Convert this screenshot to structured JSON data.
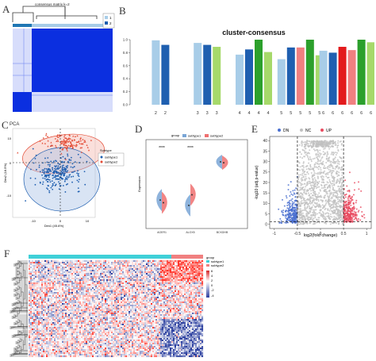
{
  "panels": {
    "a": {
      "label": "A",
      "title": "consensus matrix k=2",
      "legend": [
        "1",
        "2"
      ]
    },
    "b": {
      "label": "B"
    },
    "c": {
      "label": "C",
      "legend_title": "Subtype",
      "legend": [
        "subtype1",
        "subtype2"
      ]
    },
    "d": {
      "label": "D",
      "legend_title": "group",
      "legend": [
        "subtype1",
        "subtype2"
      ],
      "signif": [
        "****",
        "****"
      ]
    },
    "e": {
      "label": "E",
      "legend": [
        "DN",
        "NC",
        "UP"
      ]
    },
    "f": {
      "label": "F",
      "legend_title": "group",
      "legend": [
        "subtype1",
        "subtype2"
      ],
      "scale_ticks": [
        "6",
        "4",
        "2",
        "0",
        "-2",
        "-4"
      ]
    }
  },
  "colors": {
    "blue_dark": "#1f5fb0",
    "blue_light": "#a8cde8",
    "green_dark": "#2ca02c",
    "green_light": "#a6d96a",
    "salmon": "#f08080",
    "red": "#e31a1c",
    "consensus_blue": "#0b2fe0",
    "cyan": "#3fd0d8"
  },
  "chart_data": [
    {
      "panel": "B",
      "type": "bar",
      "title": "cluster-consensus",
      "ylim": [
        0,
        1.0
      ],
      "yticks": [
        "0.0",
        "0.2",
        "0.4",
        "0.6",
        "0.8",
        "1.0"
      ],
      "groups": [
        {
          "k": "2",
          "labels": [
            "2",
            "2"
          ],
          "values": [
            0.99,
            0.92
          ],
          "colors": [
            "#a8cde8",
            "#1f5fb0"
          ]
        },
        {
          "k": "3",
          "labels": [
            "3",
            "3",
            "3"
          ],
          "values": [
            0.95,
            0.92,
            0.89
          ],
          "colors": [
            "#a8cde8",
            "#1f5fb0",
            "#a6d96a"
          ]
        },
        {
          "k": "4",
          "labels": [
            "4",
            "4",
            "4",
            "4"
          ],
          "values": [
            0.77,
            0.85,
            1.0,
            0.81
          ],
          "colors": [
            "#a8cde8",
            "#1f5fb0",
            "#2ca02c",
            "#a6d96a"
          ]
        },
        {
          "k": "5",
          "labels": [
            "5",
            "5",
            "5",
            "5",
            "5"
          ],
          "values": [
            0.7,
            0.88,
            0.88,
            1.0,
            0.76
          ],
          "colors": [
            "#a8cde8",
            "#1f5fb0",
            "#f08080",
            "#2ca02c",
            "#a6d96a"
          ]
        },
        {
          "k": "6",
          "labels": [
            "6",
            "6",
            "6",
            "6",
            "6",
            "6"
          ],
          "values": [
            0.83,
            0.8,
            0.89,
            0.84,
            1.0,
            0.96
          ],
          "colors": [
            "#a8cde8",
            "#1f5fb0",
            "#e31a1c",
            "#f08080",
            "#2ca02c",
            "#a6d96a"
          ]
        }
      ]
    },
    {
      "panel": "C",
      "type": "scatter",
      "title": "PCA",
      "xlabel": "Dim1 (45.6%)",
      "ylabel": "Dim2 (18.5%)",
      "xticks": [
        "-10",
        "0",
        "10"
      ],
      "yticks": [
        "10",
        "0",
        "-10"
      ],
      "series": [
        {
          "name": "subtype1",
          "color": "#1f5fb0",
          "center": [
            -1,
            -4
          ],
          "spread": [
            8,
            6
          ],
          "count": 260
        },
        {
          "name": "subtype2",
          "color": "#e34a33",
          "center": [
            3,
            8
          ],
          "spread": [
            8,
            3
          ],
          "count": 130
        }
      ]
    },
    {
      "panel": "D",
      "type": "violin",
      "ylabel": "Expression",
      "categories": [
        "AGER1",
        "ALOX5",
        "BCKDHB"
      ],
      "series": [
        {
          "name": "subtype1",
          "color": "#7aa6d6",
          "medians": [
            3.2,
            2.6,
            7.5
          ]
        },
        {
          "name": "subtype2",
          "color": "#ef7070",
          "medians": [
            2.9,
            3.8,
            7.4
          ]
        }
      ],
      "ylim": [
        0,
        10
      ]
    },
    {
      "panel": "E",
      "type": "scatter",
      "ylabel": "-log10 (adj.p-value)",
      "xlabel": "log2(fold change)",
      "xticks": [
        "-1",
        "-0.5",
        "0",
        "0.5",
        "1"
      ],
      "yticks": [
        "0",
        "5",
        "10",
        "15",
        "20",
        "25",
        "30",
        "35",
        "40"
      ],
      "xlim": [
        -1.1,
        1.1
      ],
      "ylim": [
        -2,
        42
      ],
      "series": [
        {
          "name": "DN",
          "color": "#4a6fd0",
          "x_range": [
            -1.0,
            -0.5
          ]
        },
        {
          "name": "NC",
          "color": "#c0c0c0",
          "x_range": [
            -0.5,
            0.5
          ]
        },
        {
          "name": "UP",
          "color": "#e84a5f",
          "x_range": [
            0.5,
            1.0
          ]
        }
      ]
    },
    {
      "panel": "F",
      "type": "heatmap",
      "groups": [
        {
          "name": "subtype1",
          "color": "#3fd0d8",
          "fraction": 0.75
        },
        {
          "name": "subtype2",
          "color": "#f08080",
          "fraction": 0.25
        }
      ],
      "colorscale": [
        "#2c3fa0",
        "#ffffff",
        "#d62728"
      ],
      "range": [
        -4,
        6
      ]
    }
  ]
}
